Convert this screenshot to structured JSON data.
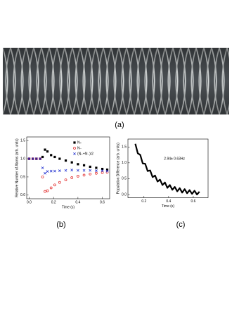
{
  "panel_labels": [
    "(a)",
    "(b)",
    "(c)"
  ],
  "chart_data": [
    {
      "type": "scatter",
      "x_label": "Time (s)",
      "y_label": "Relative Number of Atoms (arb. units)",
      "x": [
        0,
        0.03,
        0.06,
        0.09,
        0.11,
        0.13,
        0.15,
        0.18,
        0.21,
        0.25,
        0.3,
        0.35,
        0.4,
        0.45,
        0.5,
        0.55,
        0.6,
        0.64
      ],
      "series": [
        {
          "name": "N₊",
          "color": "#000000",
          "marker": "square",
          "values": [
            1.0,
            1.0,
            1.0,
            1.0,
            1.05,
            1.25,
            1.2,
            1.1,
            1.05,
            1.0,
            0.95,
            0.9,
            0.85,
            0.82,
            0.78,
            0.75,
            0.72,
            0.7
          ]
        },
        {
          "name": "N₋",
          "color": "#e02020",
          "marker": "circle",
          "values": [
            1.0,
            1.0,
            1.0,
            1.0,
            0.5,
            0.1,
            0.12,
            0.2,
            0.28,
            0.35,
            0.42,
            0.48,
            0.52,
            0.55,
            0.58,
            0.6,
            0.62,
            0.63
          ]
        },
        {
          "name": "(N₊+N₋)/2",
          "color": "#2030d0",
          "marker": "cross",
          "values": [
            1.0,
            1.0,
            1.0,
            1.0,
            0.75,
            0.6,
            0.65,
            0.66,
            0.66,
            0.67,
            0.68,
            0.69,
            0.68,
            0.68,
            0.68,
            0.67,
            0.67,
            0.66
          ]
        }
      ],
      "legend": "upper right",
      "xlim": [
        -0.02,
        0.66
      ],
      "ylim": [
        -0.1,
        1.6
      ],
      "xticks": [
        {
          "value": 0,
          "label": "0.0"
        },
        0.2,
        0.4,
        0.6
      ],
      "yticks": [
        {
          "value": 0,
          "label": "0.0"
        },
        0.5,
        {
          "value": 1,
          "label": "1.0"
        },
        1.5
      ]
    },
    {
      "type": "line",
      "x_label": "Time (s)",
      "y_label": "Population Difference (arb. units)",
      "annotation": "2.94± 0.63Hz",
      "x": [
        0.13,
        0.15,
        0.17,
        0.19,
        0.21,
        0.23,
        0.25,
        0.27,
        0.29,
        0.31,
        0.33,
        0.35,
        0.37,
        0.39,
        0.41,
        0.43,
        0.45,
        0.47,
        0.49,
        0.51,
        0.53,
        0.55,
        0.57,
        0.59,
        0.61,
        0.63,
        0.65
      ],
      "color": "#000000",
      "values": [
        1.6,
        1.3,
        1.25,
        0.98,
        0.97,
        0.74,
        0.76,
        0.55,
        0.6,
        0.41,
        0.47,
        0.3,
        0.38,
        0.21,
        0.3,
        0.15,
        0.24,
        0.1,
        0.2,
        0.06,
        0.17,
        0.04,
        0.14,
        0.02,
        0.12,
        0.0,
        0.09
      ],
      "xlim": [
        0.07,
        0.72
      ],
      "ylim": [
        -0.1,
        1.75
      ],
      "xticks": [
        0.2,
        0.4,
        0.6
      ],
      "yticks": [
        {
          "value": 0,
          "label": "0.0"
        },
        0.5,
        {
          "value": 1,
          "label": "1.0"
        },
        1.5
      ]
    }
  ]
}
